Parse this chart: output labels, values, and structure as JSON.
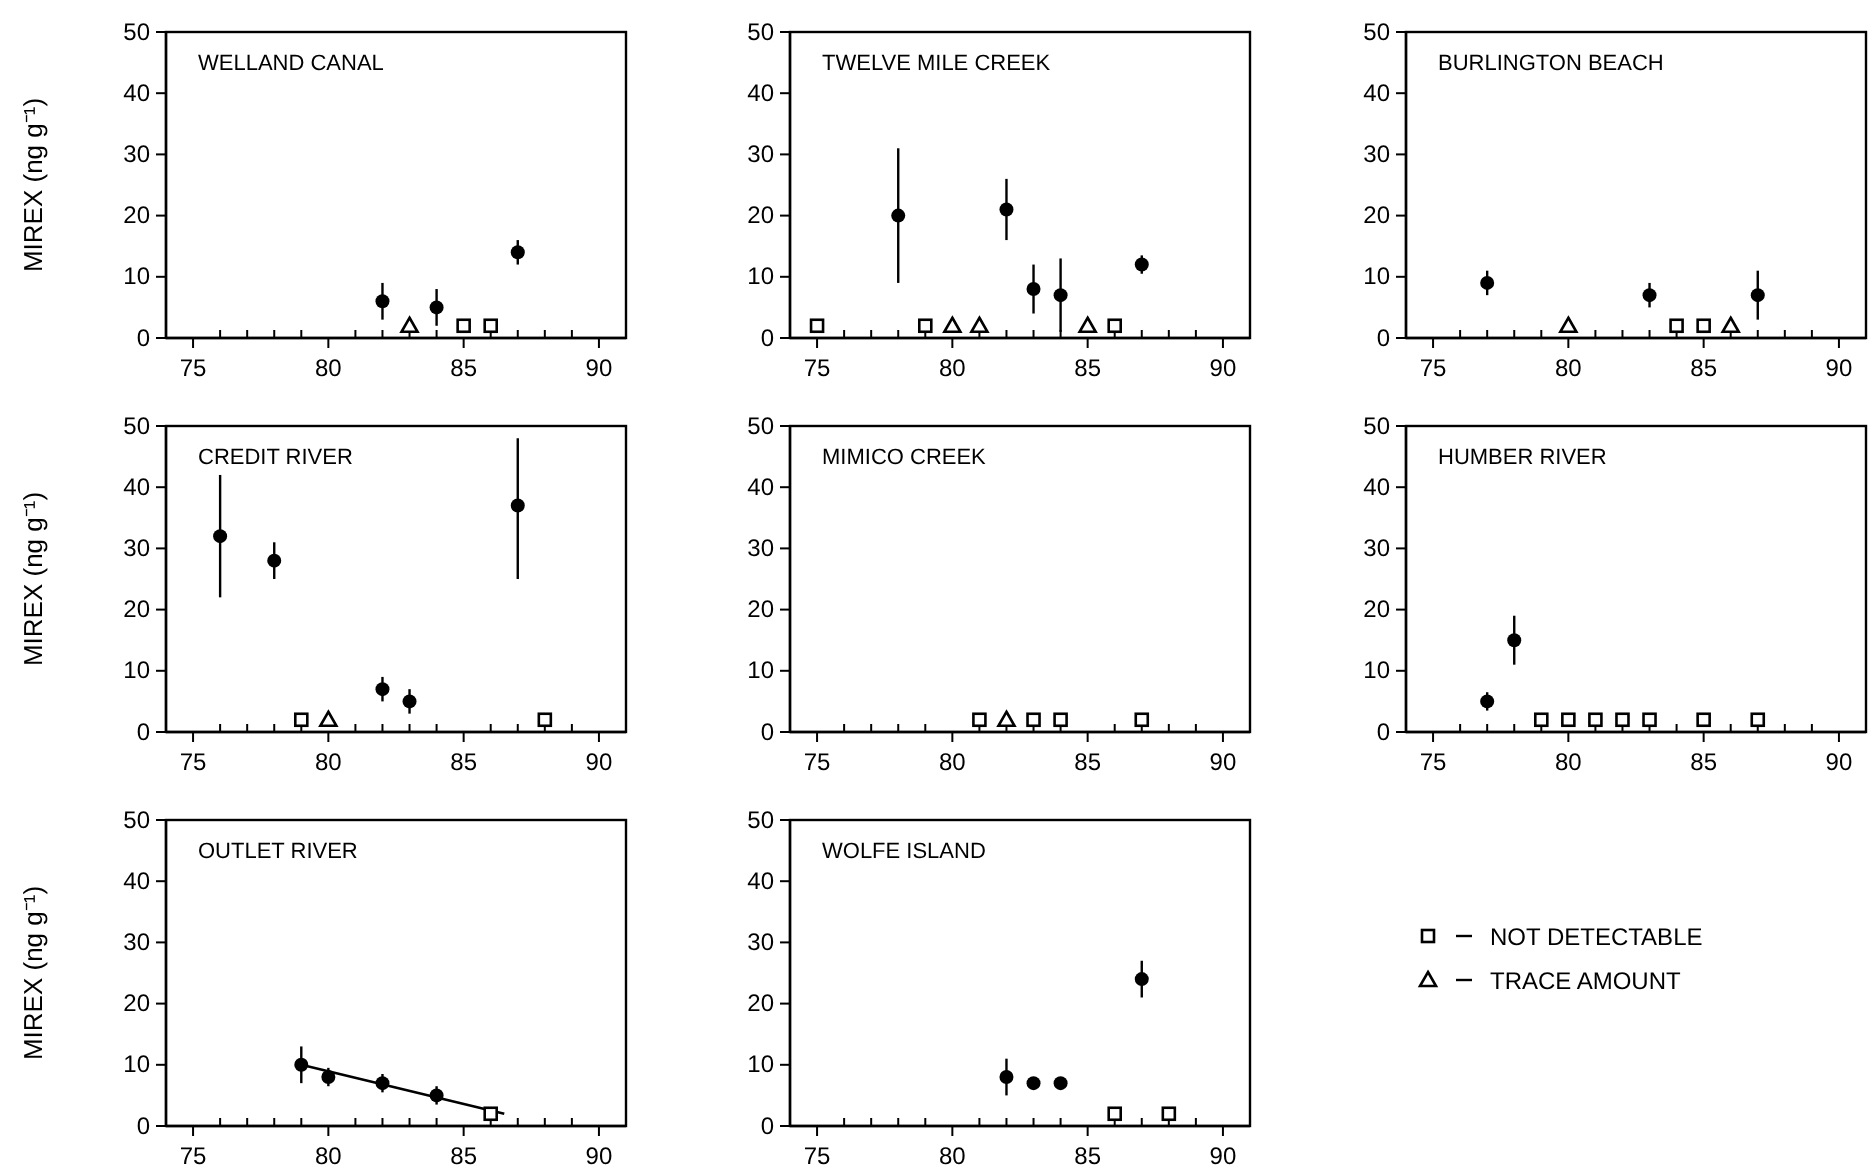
{
  "chart_data": [
    {
      "type": "scatter",
      "title": "WELLAND CANAL",
      "ylabel": "MIREX (ng g⁻¹)",
      "xlim": [
        74,
        91
      ],
      "ylim": [
        0,
        50
      ],
      "xticks": [
        {
          "value": 74,
          "label": null
        },
        75,
        {
          "value": 76,
          "label": null
        },
        {
          "value": 77,
          "label": null
        },
        {
          "value": 78,
          "label": null
        },
        {
          "value": 79,
          "label": null
        },
        80,
        {
          "value": 81,
          "label": null
        },
        {
          "value": 82,
          "label": null
        },
        {
          "value": 83,
          "label": null
        },
        {
          "value": 84,
          "label": null
        },
        85,
        {
          "value": 86,
          "label": null
        },
        {
          "value": 87,
          "label": null
        },
        {
          "value": 88,
          "label": null
        },
        {
          "value": 89,
          "label": null
        },
        90
      ],
      "yticks": [
        0,
        10,
        20,
        30,
        40,
        50
      ],
      "grid": false,
      "legend": false,
      "series": [
        {
          "color": "#000000",
          "marker": "circle",
          "x": [
            82,
            84,
            87
          ],
          "values": [
            6,
            5,
            14
          ],
          "errors": [
            3,
            3,
            2
          ]
        },
        {
          "color": "#000000",
          "marker": "square",
          "x": [
            85,
            86
          ],
          "values": [
            2,
            2
          ]
        },
        {
          "color": "#000000",
          "marker": "triangle",
          "x": [
            83
          ],
          "values": [
            2
          ]
        }
      ]
    },
    {
      "type": "scatter",
      "title": "TWELVE MILE CREEK",
      "xlim": [
        74,
        91
      ],
      "ylim": [
        0,
        50
      ],
      "xticks": [
        {
          "value": 74,
          "label": null
        },
        75,
        {
          "value": 76,
          "label": null
        },
        {
          "value": 77,
          "label": null
        },
        {
          "value": 78,
          "label": null
        },
        {
          "value": 79,
          "label": null
        },
        80,
        {
          "value": 81,
          "label": null
        },
        {
          "value": 82,
          "label": null
        },
        {
          "value": 83,
          "label": null
        },
        {
          "value": 84,
          "label": null
        },
        85,
        {
          "value": 86,
          "label": null
        },
        {
          "value": 87,
          "label": null
        },
        {
          "value": 88,
          "label": null
        },
        {
          "value": 89,
          "label": null
        },
        90
      ],
      "yticks": [
        0,
        10,
        20,
        30,
        40,
        50
      ],
      "grid": false,
      "legend": false,
      "series": [
        {
          "color": "#000000",
          "marker": "circle",
          "x": [
            78,
            82,
            83,
            84,
            87
          ],
          "values": [
            20,
            21,
            8,
            7,
            12
          ],
          "errors": [
            [
              9,
              31
            ],
            [
              16,
              26
            ],
            [
              4,
              12
            ],
            [
              1,
              13
            ],
            1.5
          ]
        },
        {
          "color": "#000000",
          "marker": "square",
          "x": [
            75,
            79,
            86
          ],
          "values": [
            2,
            2,
            2
          ]
        },
        {
          "color": "#000000",
          "marker": "triangle",
          "x": [
            80,
            81,
            85
          ],
          "values": [
            2,
            2,
            2
          ]
        }
      ]
    },
    {
      "type": "scatter",
      "title": "BURLINGTON BEACH",
      "xlim": [
        74,
        91
      ],
      "ylim": [
        0,
        50
      ],
      "xticks": [
        {
          "value": 74,
          "label": null
        },
        75,
        {
          "value": 76,
          "label": null
        },
        {
          "value": 77,
          "label": null
        },
        {
          "value": 78,
          "label": null
        },
        {
          "value": 79,
          "label": null
        },
        80,
        {
          "value": 81,
          "label": null
        },
        {
          "value": 82,
          "label": null
        },
        {
          "value": 83,
          "label": null
        },
        {
          "value": 84,
          "label": null
        },
        85,
        {
          "value": 86,
          "label": null
        },
        {
          "value": 87,
          "label": null
        },
        {
          "value": 88,
          "label": null
        },
        {
          "value": 89,
          "label": null
        },
        90
      ],
      "yticks": [
        0,
        10,
        20,
        30,
        40,
        50
      ],
      "grid": false,
      "legend": false,
      "series": [
        {
          "color": "#000000",
          "marker": "circle",
          "x": [
            77,
            83,
            87
          ],
          "values": [
            9,
            7,
            7
          ],
          "errors": [
            2,
            2,
            [
              3,
              11
            ]
          ]
        },
        {
          "color": "#000000",
          "marker": "square",
          "x": [
            84,
            85
          ],
          "values": [
            2,
            2
          ]
        },
        {
          "color": "#000000",
          "marker": "triangle",
          "x": [
            80,
            86
          ],
          "values": [
            2,
            2
          ]
        }
      ]
    },
    {
      "type": "scatter",
      "title": "CREDIT RIVER",
      "ylabel": "MIREX (ng g⁻¹)",
      "xlim": [
        74,
        91
      ],
      "ylim": [
        0,
        50
      ],
      "xticks": [
        {
          "value": 74,
          "label": null
        },
        75,
        {
          "value": 76,
          "label": null
        },
        {
          "value": 77,
          "label": null
        },
        {
          "value": 78,
          "label": null
        },
        {
          "value": 79,
          "label": null
        },
        80,
        {
          "value": 81,
          "label": null
        },
        {
          "value": 82,
          "label": null
        },
        {
          "value": 83,
          "label": null
        },
        {
          "value": 84,
          "label": null
        },
        85,
        {
          "value": 86,
          "label": null
        },
        {
          "value": 87,
          "label": null
        },
        {
          "value": 88,
          "label": null
        },
        {
          "value": 89,
          "label": null
        },
        90
      ],
      "yticks": [
        0,
        10,
        20,
        30,
        40,
        50
      ],
      "grid": false,
      "legend": false,
      "series": [
        {
          "color": "#000000",
          "marker": "circle",
          "x": [
            76,
            78,
            82,
            83,
            87
          ],
          "values": [
            32,
            28,
            7,
            5,
            37
          ],
          "errors": [
            [
              22,
              42
            ],
            [
              25,
              31
            ],
            [
              5,
              9
            ],
            [
              3,
              7
            ],
            [
              25,
              48
            ]
          ]
        },
        {
          "color": "#000000",
          "marker": "square",
          "x": [
            79,
            88
          ],
          "values": [
            2,
            2
          ]
        },
        {
          "color": "#000000",
          "marker": "triangle",
          "x": [
            80
          ],
          "values": [
            2
          ]
        }
      ]
    },
    {
      "type": "scatter",
      "title": "MIMICO CREEK",
      "xlim": [
        74,
        91
      ],
      "ylim": [
        0,
        50
      ],
      "xticks": [
        {
          "value": 74,
          "label": null
        },
        75,
        {
          "value": 76,
          "label": null
        },
        {
          "value": 77,
          "label": null
        },
        {
          "value": 78,
          "label": null
        },
        {
          "value": 79,
          "label": null
        },
        80,
        {
          "value": 81,
          "label": null
        },
        {
          "value": 82,
          "label": null
        },
        {
          "value": 83,
          "label": null
        },
        {
          "value": 84,
          "label": null
        },
        85,
        {
          "value": 86,
          "label": null
        },
        {
          "value": 87,
          "label": null
        },
        {
          "value": 88,
          "label": null
        },
        {
          "value": 89,
          "label": null
        },
        90
      ],
      "yticks": [
        0,
        10,
        20,
        30,
        40,
        50
      ],
      "grid": false,
      "legend": "bottom right",
      "series": [
        {
          "name": "NOT DETECTABLE",
          "color": "#000000",
          "marker": "square",
          "x": [
            81,
            83,
            84,
            87
          ],
          "values": [
            2,
            2,
            2,
            2
          ]
        },
        {
          "name": "TRACE AMOUNT",
          "color": "#000000",
          "marker": "triangle",
          "x": [
            82
          ],
          "values": [
            2
          ]
        }
      ]
    },
    {
      "type": "scatter",
      "title": "HUMBER RIVER",
      "xlim": [
        74,
        91
      ],
      "ylim": [
        0,
        50
      ],
      "xticks": [
        {
          "value": 74,
          "label": null
        },
        75,
        {
          "value": 76,
          "label": null
        },
        {
          "value": 77,
          "label": null
        },
        {
          "value": 78,
          "label": null
        },
        {
          "value": 79,
          "label": null
        },
        80,
        {
          "value": 81,
          "label": null
        },
        {
          "value": 82,
          "label": null
        },
        {
          "value": 83,
          "label": null
        },
        {
          "value": 84,
          "label": null
        },
        85,
        {
          "value": 86,
          "label": null
        },
        {
          "value": 87,
          "label": null
        },
        {
          "value": 88,
          "label": null
        },
        {
          "value": 89,
          "label": null
        },
        90
      ],
      "yticks": [
        0,
        10,
        20,
        30,
        40,
        50
      ],
      "grid": false,
      "legend": false,
      "series": [
        {
          "color": "#000000",
          "marker": "circle",
          "x": [
            77,
            78
          ],
          "values": [
            5,
            15
          ],
          "errors": [
            1.5,
            4
          ]
        },
        {
          "color": "#000000",
          "marker": "square",
          "x": [
            79,
            80,
            81,
            82,
            83,
            85,
            87
          ],
          "values": [
            2,
            2,
            2,
            2,
            2,
            2,
            2
          ]
        }
      ]
    },
    {
      "type": "scatter",
      "title": "OUTLET RIVER",
      "ylabel": "MIREX (ng g⁻¹)",
      "xlim": [
        74,
        91
      ],
      "ylim": [
        0,
        50
      ],
      "xticks": [
        {
          "value": 74,
          "label": null
        },
        75,
        {
          "value": 76,
          "label": null
        },
        {
          "value": 77,
          "label": null
        },
        {
          "value": 78,
          "label": null
        },
        {
          "value": 79,
          "label": null
        },
        80,
        {
          "value": 81,
          "label": null
        },
        {
          "value": 82,
          "label": null
        },
        {
          "value": 83,
          "label": null
        },
        {
          "value": 84,
          "label": null
        },
        85,
        {
          "value": 86,
          "label": null
        },
        {
          "value": 87,
          "label": null
        },
        {
          "value": 88,
          "label": null
        },
        {
          "value": 89,
          "label": null
        },
        90
      ],
      "yticks": [
        0,
        10,
        20,
        30,
        40,
        50
      ],
      "grid": false,
      "legend": false,
      "series": [
        {
          "type": "line",
          "color": "#000000",
          "line_style": "solid",
          "x": [
            79,
            86.5
          ],
          "values": [
            10,
            2
          ]
        },
        {
          "color": "#000000",
          "marker": "circle",
          "x": [
            79,
            80,
            82,
            84
          ],
          "values": [
            10,
            8,
            7,
            5
          ],
          "errors": [
            3,
            1.5,
            1.5,
            1.5
          ]
        },
        {
          "color": "#000000",
          "marker": "square",
          "x": [
            86
          ],
          "values": [
            2
          ]
        }
      ]
    },
    {
      "type": "scatter",
      "title": "WOLFE ISLAND",
      "xlim": [
        74,
        91
      ],
      "ylim": [
        0,
        50
      ],
      "xticks": [
        {
          "value": 74,
          "label": null
        },
        75,
        {
          "value": 76,
          "label": null
        },
        {
          "value": 77,
          "label": null
        },
        {
          "value": 78,
          "label": null
        },
        {
          "value": 79,
          "label": null
        },
        80,
        {
          "value": 81,
          "label": null
        },
        {
          "value": 82,
          "label": null
        },
        {
          "value": 83,
          "label": null
        },
        {
          "value": 84,
          "label": null
        },
        85,
        {
          "value": 86,
          "label": null
        },
        {
          "value": 87,
          "label": null
        },
        {
          "value": 88,
          "label": null
        },
        {
          "value": 89,
          "label": null
        },
        90
      ],
      "yticks": [
        0,
        10,
        20,
        30,
        40,
        50
      ],
      "grid": false,
      "legend": false,
      "series": [
        {
          "color": "#000000",
          "marker": "circle",
          "x": [
            82,
            83,
            84,
            87
          ],
          "values": [
            8,
            7,
            7,
            24
          ],
          "errors": [
            3,
            null,
            null,
            3
          ]
        },
        {
          "color": "#000000",
          "marker": "square",
          "x": [
            86,
            88
          ],
          "values": [
            2,
            2
          ]
        }
      ]
    }
  ]
}
